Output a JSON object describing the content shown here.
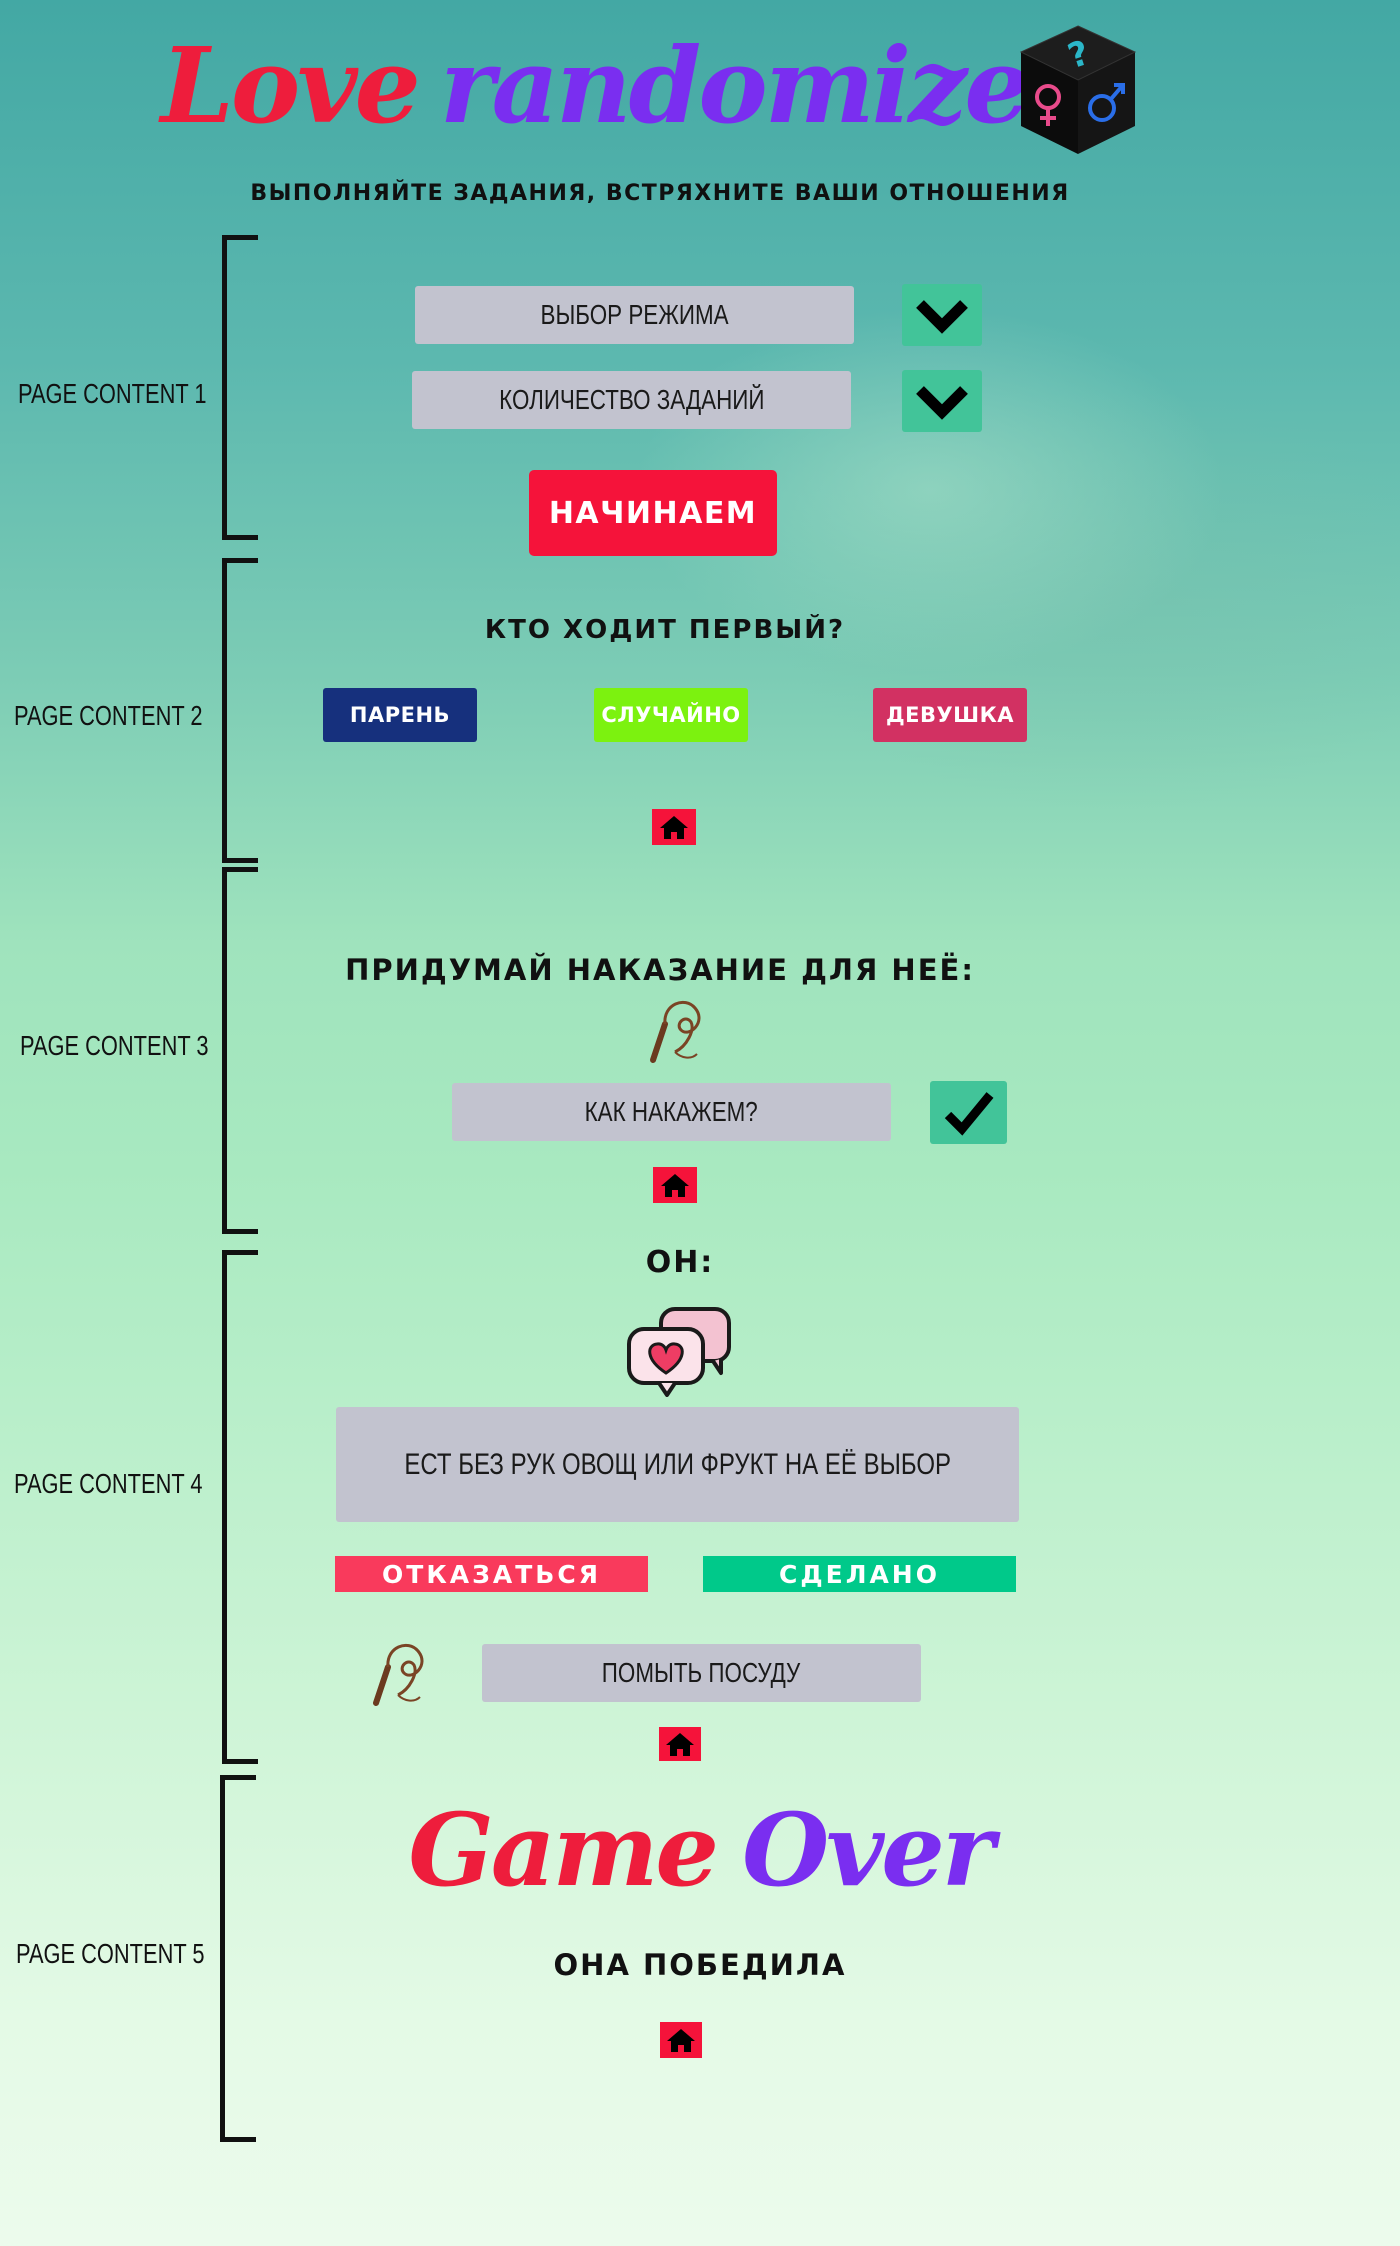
{
  "header": {
    "title_part1": "Love",
    "title_part2": "randomizer",
    "subtitle": "ВЫПОЛНЯЙТЕ ЗАДАНИЯ, ВСТРЯХНИТЕ ВАШИ ОТНОШЕНИЯ",
    "logo_icon": "gender-dice-icon"
  },
  "sections": {
    "s1": "PAGE CONTENT 1",
    "s2": "PAGE CONTENT 2",
    "s3": "PAGE CONTENT 3",
    "s4": "PAGE CONTENT 4",
    "s5": "PAGE CONTENT 5"
  },
  "page1": {
    "mode_select": "ВЫБОР РЕЖИМА",
    "count_select": "КОЛИЧЕСТВО ЗАДАНИЙ",
    "start_button": "НАЧИНАЕМ"
  },
  "page2": {
    "question": "КТО ХОДИТ ПЕРВЫЙ?",
    "guy": "ПАРЕНЬ",
    "random": "СЛУЧАЙНО",
    "girl": "ДЕВУШКА"
  },
  "page3": {
    "heading": "ПРИДУМАЙ НАКАЗАНИЕ ДЛЯ НЕЁ:",
    "punishment_field": "КАК НАКАЖЕМ?"
  },
  "page4": {
    "player": "ОН:",
    "task": "ЕСТ БЕЗ РУК ОВОЩ ИЛИ ФРУКТ  НА ЕЁ ВЫБОР",
    "refuse": "ОТКАЗАТЬСЯ",
    "done": "СДЕЛАНО",
    "punishment": "ПОМЫТЬ ПОСУДУ"
  },
  "page5": {
    "title_part1": "Game",
    "title_part2": "Over",
    "result": "ОНА ПОБЕДИЛА"
  },
  "colors": {
    "red": "#f5133a",
    "purple": "#7a2ef0",
    "green": "#42c499",
    "navy": "#16307d",
    "lime": "#7cf20f",
    "pink": "#d23162",
    "teal_done": "#00c98a",
    "gray": "#c2c3cf"
  }
}
